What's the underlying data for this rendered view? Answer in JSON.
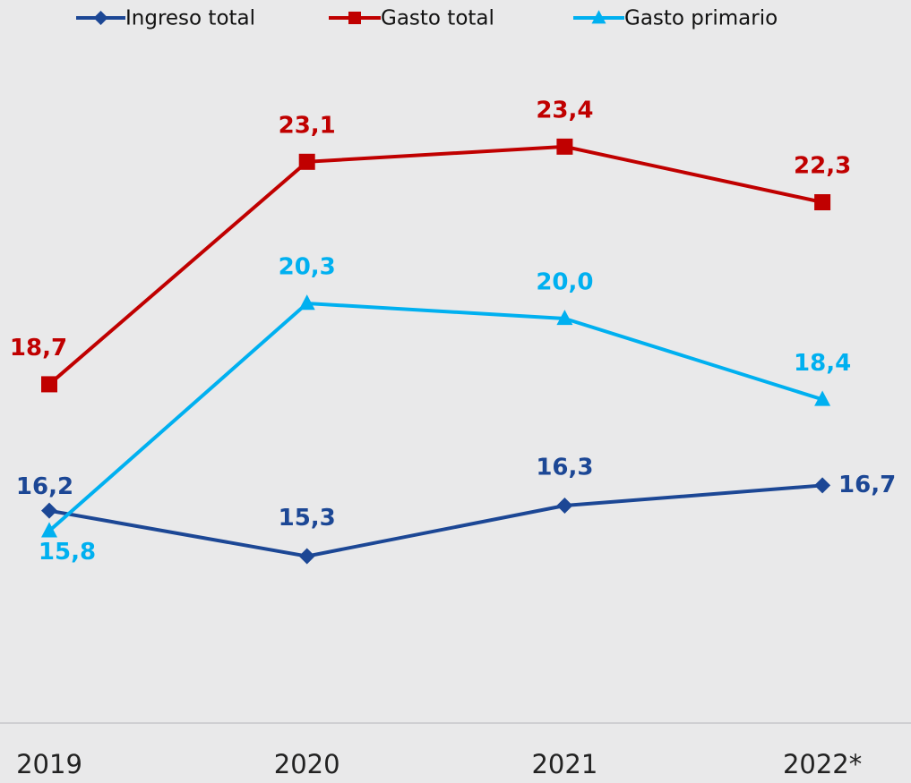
{
  "chart_data": {
    "type": "line",
    "categories": [
      "2019",
      "2020",
      "2021",
      "2022*"
    ],
    "ylim": [
      12,
      26.3
    ],
    "series": [
      {
        "name": "Ingreso total",
        "color": "#1c4795",
        "marker": "diamond",
        "values": [
          16.2,
          15.3,
          16.3,
          16.7
        ],
        "value_labels": [
          "16,2",
          "15,3",
          "16,3",
          "16,7"
        ]
      },
      {
        "name": "Gasto total",
        "color": "#c00000",
        "marker": "square",
        "values": [
          18.7,
          23.1,
          23.4,
          22.3
        ],
        "value_labels": [
          "18,7",
          "23,1",
          "23,4",
          "22,3"
        ]
      },
      {
        "name": "Gasto primario",
        "color": "#00b0f0",
        "marker": "triangle",
        "values": [
          15.8,
          20.3,
          20.0,
          18.4
        ],
        "value_labels": [
          "15,8",
          "20,3",
          "20,0",
          "18,4"
        ]
      }
    ]
  }
}
